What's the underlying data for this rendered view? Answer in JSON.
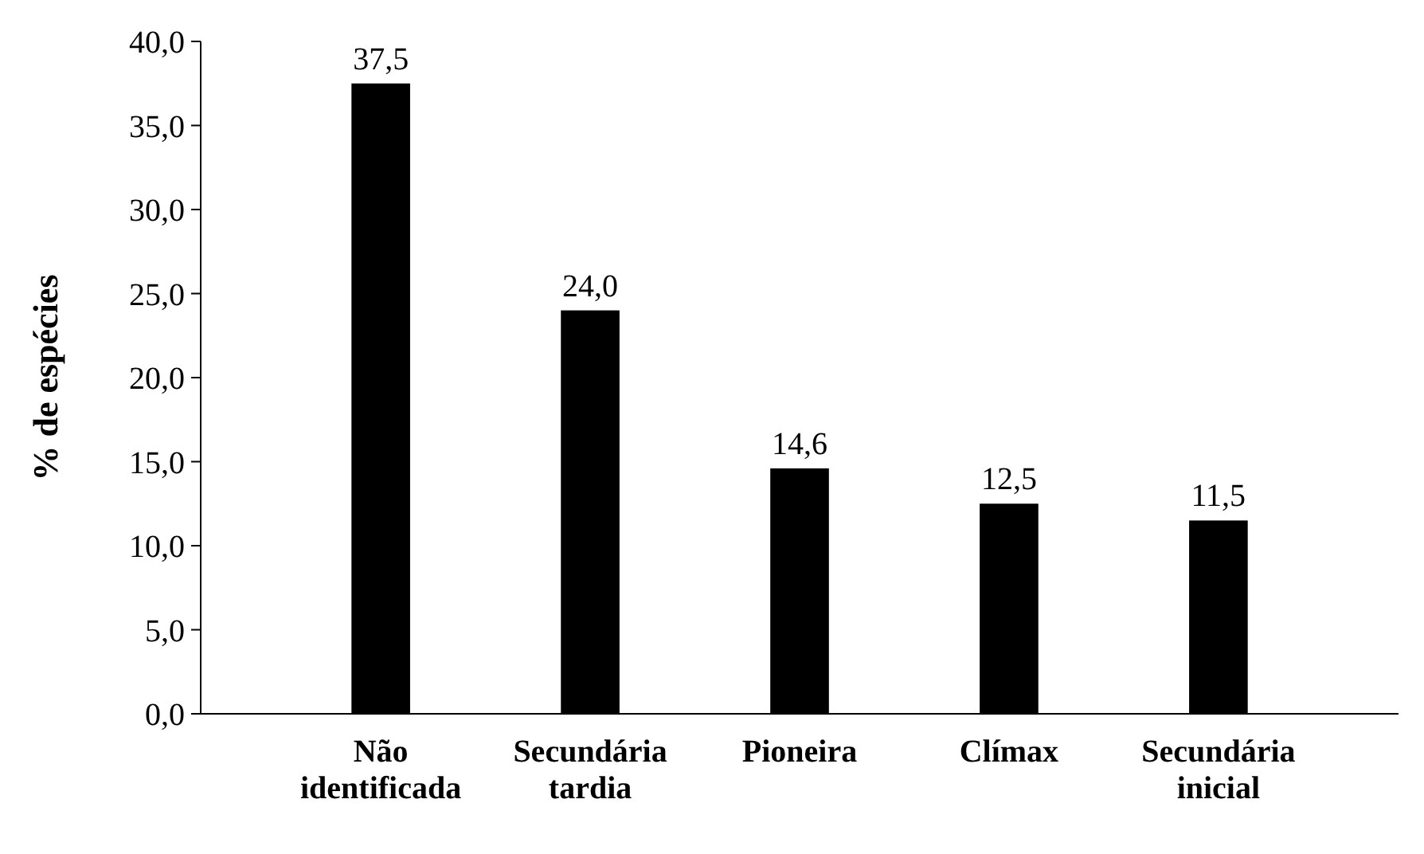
{
  "chart_data": {
    "type": "bar",
    "ylabel": "% de espécies",
    "categories": [
      "Não identificada",
      "Secundária tardia",
      "Pioneira",
      "Clímax",
      "Secundária inicial"
    ],
    "values": [
      37.5,
      24.0,
      14.6,
      12.5,
      11.5
    ],
    "value_labels": [
      "37,5",
      "24,0",
      "14,6",
      "12,5",
      "11,5"
    ],
    "color": "#000000",
    "ylim": [
      0,
      40
    ],
    "yticks": [
      {
        "value": 0,
        "label": "0,0"
      },
      {
        "value": 5,
        "label": "5,0"
      },
      {
        "value": 10,
        "label": "10,0"
      },
      {
        "value": 15,
        "label": "15,0"
      },
      {
        "value": 20,
        "label": "20,0"
      },
      {
        "value": 25,
        "label": "25,0"
      },
      {
        "value": 30,
        "label": "30,0"
      },
      {
        "value": 35,
        "label": "35,0"
      },
      {
        "value": 40,
        "label": "40,0"
      }
    ],
    "grid": false
  }
}
